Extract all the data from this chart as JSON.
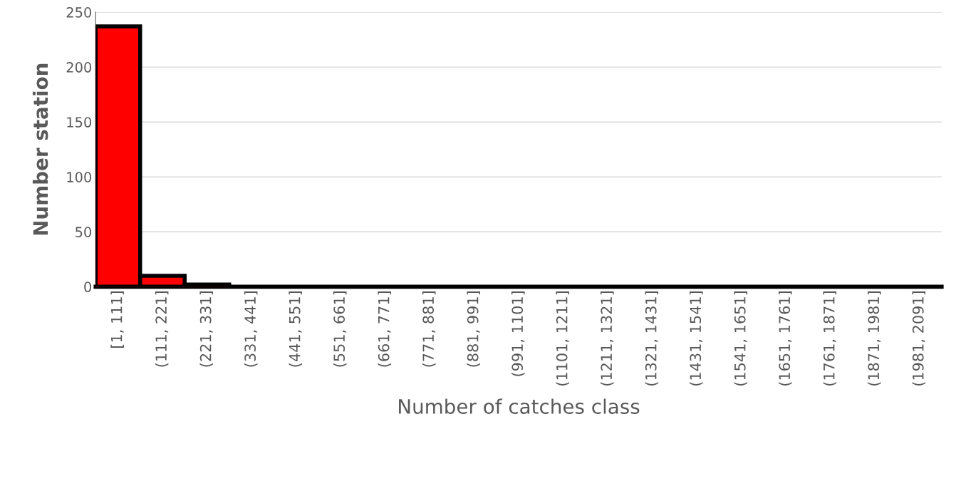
{
  "chart_data": {
    "type": "bar",
    "xlabel": "Number of catches class",
    "ylabel": "Number station",
    "categories": [
      "[1, 111]",
      "(111, 221]",
      "(221, 331]",
      "(331, 441]",
      "(441, 551]",
      "(551, 661]",
      "(661, 771]",
      "(771, 881]",
      "(881, 991]",
      "(991, 1101]",
      "(1101, 1211]",
      "(1211, 1321]",
      "(1321, 1431]",
      "(1431, 1541]",
      "(1541, 1651]",
      "(1651, 1761]",
      "(1761, 1871]",
      "(1871, 1981]",
      "(1981, 2091]"
    ],
    "values": [
      237,
      10,
      2,
      0,
      0,
      0,
      0,
      0,
      0,
      0,
      0,
      0,
      0,
      0,
      0,
      0,
      0,
      0,
      0
    ],
    "color": "#ff0000",
    "ylim": [
      0,
      250
    ],
    "yticks": [
      0,
      50,
      100,
      150,
      200,
      250
    ],
    "grid": "y"
  }
}
